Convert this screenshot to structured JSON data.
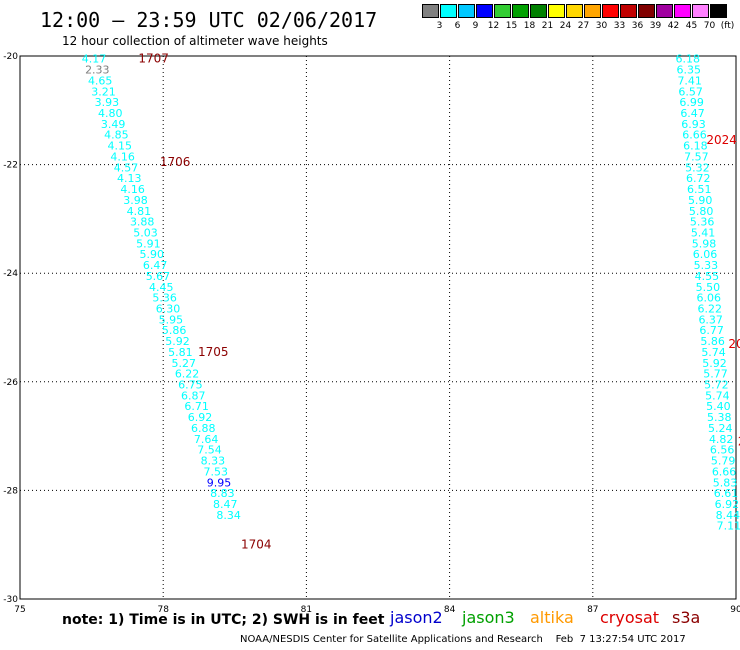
{
  "header": {
    "title": "12:00 – 23:59 UTC 02/06/2017",
    "subtitle": "12 hour collection of altimeter wave heights"
  },
  "legend": {
    "labels": [
      "3",
      "6",
      "9",
      "12",
      "15",
      "18",
      "21",
      "24",
      "27",
      "30",
      "33",
      "36",
      "39",
      "42",
      "45",
      "70",
      "(ft)"
    ],
    "colors": [
      "#808080",
      "#00ffff",
      "#00c8ff",
      "#0000ff",
      "#32cd32",
      "#00a000",
      "#008000",
      "#ffff00",
      "#ffd700",
      "#ffa500",
      "#ff0000",
      "#c00000",
      "#800000",
      "#a000a0",
      "#ff00ff",
      "#ff80ff",
      "#000000"
    ]
  },
  "footer": {
    "note": "note: 1) Time is in UTC; 2) SWH is in feet",
    "satellites": [
      {
        "name": "jason2",
        "color": "#0000cc"
      },
      {
        "name": "jason3",
        "color": "#00a000"
      },
      {
        "name": "altika",
        "color": "#ff9900"
      },
      {
        "name": "cryosat",
        "color": "#dd0000"
      },
      {
        "name": "s3a",
        "color": "#8b0000"
      }
    ],
    "credit": "NOAA/NESDIS Center for Satellite Applications and Research    Feb  7 13:27:54 UTC 2017"
  },
  "chart_data": {
    "type": "scatter",
    "title": "12:00 – 23:59 UTC 02/06/2017",
    "subtitle": "12 hour collection of altimeter wave heights",
    "xlim": [
      75,
      90
    ],
    "ylim": [
      -30,
      -20
    ],
    "xticks": [
      "75",
      "78",
      "81",
      "84",
      "87",
      "90"
    ],
    "yticks": [
      "-20",
      "-22",
      "-24",
      "-26",
      "-28",
      "-30"
    ],
    "grid": "dotted",
    "series": [
      {
        "name": "altika",
        "color": "#00ffff",
        "points": [
          [
            76.55,
            -20.05,
            "4.17"
          ],
          [
            76.62,
            -20.25,
            "2.33"
          ],
          [
            76.68,
            -20.45,
            "4.65"
          ],
          [
            76.75,
            -20.65,
            "3.21"
          ],
          [
            76.82,
            -20.85,
            "3.93"
          ],
          [
            76.89,
            -21.05,
            "4.80"
          ],
          [
            76.95,
            -21.25,
            "3.49"
          ],
          [
            77.02,
            -21.45,
            "4.85"
          ],
          [
            77.09,
            -21.65,
            "4.15"
          ],
          [
            77.15,
            -21.85,
            "4.16"
          ],
          [
            77.22,
            -22.05,
            "4.57"
          ],
          [
            77.29,
            -22.25,
            "4.13"
          ],
          [
            77.36,
            -22.45,
            "4.16"
          ],
          [
            77.42,
            -22.65,
            "3.98"
          ],
          [
            77.49,
            -22.85,
            "4.81"
          ],
          [
            77.56,
            -23.05,
            "3.88"
          ],
          [
            77.63,
            -23.25,
            "5.03"
          ],
          [
            77.69,
            -23.45,
            "5.91"
          ],
          [
            77.76,
            -23.65,
            "5.90"
          ],
          [
            77.83,
            -23.85,
            "6.47"
          ],
          [
            77.89,
            -24.05,
            "5.67"
          ],
          [
            77.96,
            -24.25,
            "4.45"
          ],
          [
            78.03,
            -24.45,
            "5.36"
          ],
          [
            78.1,
            -24.65,
            "6.30"
          ],
          [
            78.16,
            -24.85,
            "5.95"
          ],
          [
            78.23,
            -25.05,
            "5.86"
          ],
          [
            78.3,
            -25.25,
            "5.92"
          ],
          [
            78.36,
            -25.45,
            "5.81"
          ],
          [
            78.43,
            -25.65,
            "5.27"
          ],
          [
            78.5,
            -25.85,
            "6.22"
          ],
          [
            78.57,
            -26.05,
            "6.75"
          ],
          [
            78.63,
            -26.25,
            "6.87"
          ],
          [
            78.7,
            -26.45,
            "6.71"
          ],
          [
            78.77,
            -26.65,
            "6.92"
          ],
          [
            78.84,
            -26.85,
            "6.88"
          ],
          [
            78.9,
            -27.05,
            "7.64"
          ],
          [
            78.97,
            -27.25,
            "7.54"
          ],
          [
            79.04,
            -27.45,
            "8.33"
          ],
          [
            79.1,
            -27.65,
            "7.53"
          ],
          [
            79.17,
            -27.85,
            "9.95"
          ],
          [
            79.24,
            -28.05,
            "8.83"
          ],
          [
            79.3,
            -28.25,
            "8.47"
          ],
          [
            79.37,
            -28.45,
            "8.34"
          ]
        ]
      },
      {
        "name": "altika",
        "color": "#00ffff",
        "points": [
          [
            88.99,
            -20.05,
            "6.18"
          ],
          [
            89.01,
            -20.25,
            "6.35"
          ],
          [
            89.03,
            -20.45,
            "7.41"
          ],
          [
            89.05,
            -20.65,
            "6.57"
          ],
          [
            89.07,
            -20.85,
            "6.99"
          ],
          [
            89.09,
            -21.05,
            "6.47"
          ],
          [
            89.11,
            -21.25,
            "6.93"
          ],
          [
            89.13,
            -21.45,
            "6.66"
          ],
          [
            89.15,
            -21.65,
            "6.18"
          ],
          [
            89.17,
            -21.85,
            "7.57"
          ],
          [
            89.19,
            -22.05,
            "5.32"
          ],
          [
            89.21,
            -22.25,
            "6.72"
          ],
          [
            89.23,
            -22.45,
            "6.51"
          ],
          [
            89.25,
            -22.65,
            "5.90"
          ],
          [
            89.27,
            -22.85,
            "5.80"
          ],
          [
            89.29,
            -23.05,
            "5.36"
          ],
          [
            89.31,
            -23.25,
            "5.41"
          ],
          [
            89.33,
            -23.45,
            "5.98"
          ],
          [
            89.35,
            -23.65,
            "6.06"
          ],
          [
            89.37,
            -23.85,
            "5.33"
          ],
          [
            89.39,
            -24.05,
            "4.55"
          ],
          [
            89.41,
            -24.25,
            "5.50"
          ],
          [
            89.43,
            -24.45,
            "6.06"
          ],
          [
            89.45,
            -24.65,
            "6.22"
          ],
          [
            89.47,
            -24.85,
            "6.37"
          ],
          [
            89.49,
            -25.05,
            "6.77"
          ],
          [
            89.51,
            -25.25,
            "5.86"
          ],
          [
            89.53,
            -25.45,
            "5.74"
          ],
          [
            89.55,
            -25.65,
            "5.92"
          ],
          [
            89.57,
            -25.85,
            "5.77"
          ],
          [
            89.59,
            -26.05,
            "5.72"
          ],
          [
            89.61,
            -26.25,
            "5.74"
          ],
          [
            89.63,
            -26.45,
            "5.40"
          ],
          [
            89.65,
            -26.65,
            "5.38"
          ],
          [
            89.67,
            -26.85,
            "5.24"
          ],
          [
            89.69,
            -27.05,
            "4.82"
          ],
          [
            89.71,
            -27.25,
            "6.56"
          ],
          [
            89.73,
            -27.45,
            "5.79"
          ],
          [
            89.75,
            -27.65,
            "6.66"
          ],
          [
            89.77,
            -27.85,
            "5.83"
          ],
          [
            89.79,
            -28.05,
            "6.61"
          ],
          [
            89.81,
            -28.25,
            "6.92"
          ],
          [
            89.83,
            -28.45,
            "8.44"
          ],
          [
            89.85,
            -28.65,
            "7.11"
          ]
        ]
      }
    ],
    "time_labels": [
      {
        "x": 77.8,
        "y": -20.05,
        "text": "1707",
        "color": "#8b0000"
      },
      {
        "x": 78.25,
        "y": -21.95,
        "text": "1706",
        "color": "#8b0000"
      },
      {
        "x": 79.05,
        "y": -25.45,
        "text": "1705",
        "color": "#8b0000"
      },
      {
        "x": 79.95,
        "y": -29.0,
        "text": "1704",
        "color": "#8b0000"
      },
      {
        "x": 89.7,
        "y": -21.55,
        "text": "2024",
        "color": "#dd0000"
      },
      {
        "x": 90.0,
        "y": -25.3,
        "text": "20",
        "color": "#dd0000"
      },
      {
        "x": 90.12,
        "y": -27.1,
        "text": "2",
        "color": "#dd0000"
      }
    ]
  }
}
